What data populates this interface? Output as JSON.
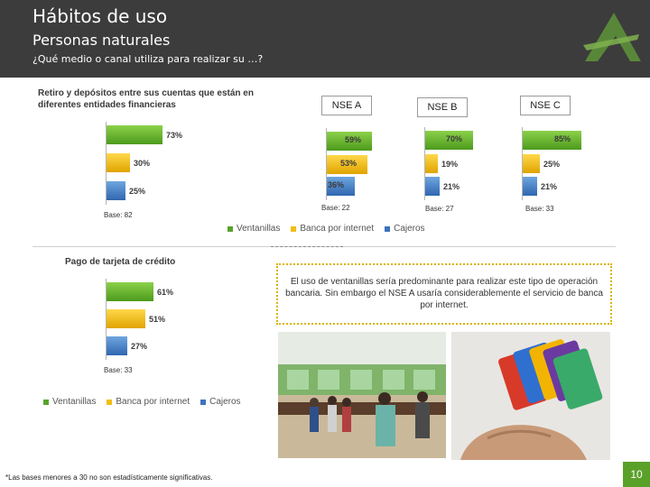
{
  "header": {
    "title": "Hábitos de uso",
    "subtitle": "Personas naturales",
    "question": "¿Qué medio o canal utiliza para realizar su …?"
  },
  "colors": {
    "green": "#5aa32a",
    "yellow": "#f2bd12",
    "blue": "#3d74bd",
    "header_bg": "#3c3c3c"
  },
  "legend": [
    "Ventanillas",
    "Banca por internet",
    "Cajeros"
  ],
  "chart_data": [
    {
      "type": "bar",
      "orientation": "horizontal",
      "title": "Retiro y depósitos entre sus cuentas que están en diferentes entidades financieras",
      "group": "",
      "categories": [
        "Ventanillas",
        "Banca por internet",
        "Cajeros"
      ],
      "values": [
        73,
        30,
        25
      ],
      "labels": [
        "73%",
        "30%",
        "25%"
      ],
      "base": "Base: 82"
    },
    {
      "type": "bar",
      "orientation": "horizontal",
      "title": "",
      "group": "NSE A",
      "categories": [
        "Ventanillas",
        "Banca por internet",
        "Cajeros"
      ],
      "values": [
        59,
        53,
        36
      ],
      "labels": [
        "59%",
        "53%",
        "36%"
      ],
      "base": "Base: 22"
    },
    {
      "type": "bar",
      "orientation": "horizontal",
      "title": "",
      "group": "NSE B",
      "categories": [
        "Ventanillas",
        "Banca por internet",
        "Cajeros"
      ],
      "values": [
        70,
        19,
        21
      ],
      "labels": [
        "70%",
        "19%",
        "21%"
      ],
      "base": "Base: 27"
    },
    {
      "type": "bar",
      "orientation": "horizontal",
      "title": "",
      "group": "NSE C",
      "categories": [
        "Ventanillas",
        "Banca por internet",
        "Cajeros"
      ],
      "values": [
        85,
        25,
        21
      ],
      "labels": [
        "85%",
        "25%",
        "21%"
      ],
      "base": "Base: 33"
    },
    {
      "type": "bar",
      "orientation": "horizontal",
      "title": "Pago de tarjeta de crédito",
      "group": "",
      "categories": [
        "Ventanillas",
        "Banca por internet",
        "Cajeros"
      ],
      "values": [
        61,
        51,
        27
      ],
      "labels": [
        "61%",
        "51%",
        "27%"
      ],
      "base": "Base: 33"
    }
  ],
  "note": "El uso de ventanillas sería predominante para realizar este tipo de operación bancaria. Sin embargo el NSE A usaría considerablemente el servicio de banca por internet.",
  "footnote": "*Las bases menores a 30 no son estadísticamente significativas.",
  "page_number": "10",
  "images": [
    "bank-branch-photo",
    "credit-cards-photo"
  ]
}
